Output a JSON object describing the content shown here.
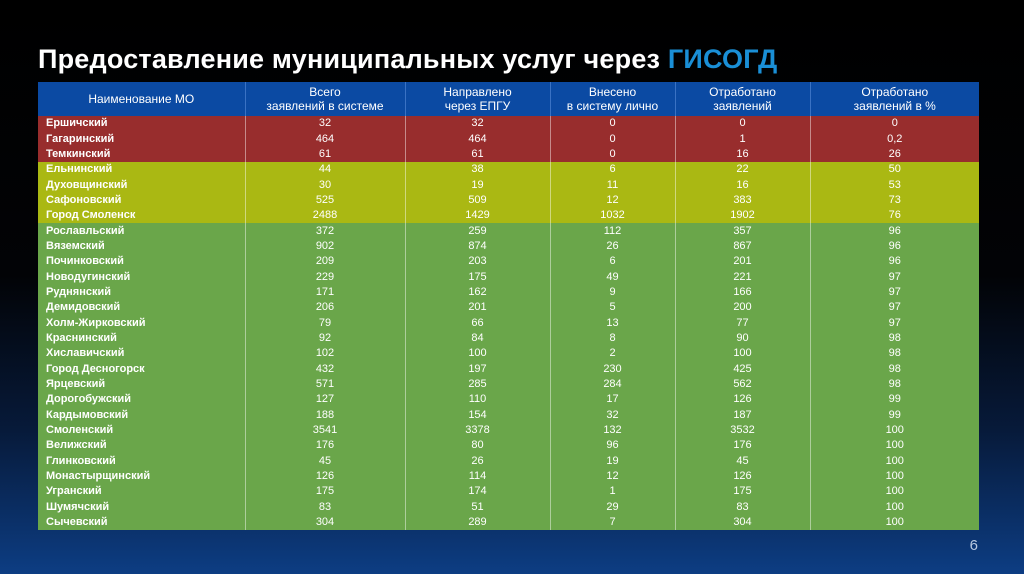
{
  "title": {
    "prefix": "Предоставление муниципальных услуг через",
    "highlight": "ГИСОГД"
  },
  "page_number": "6",
  "colors": {
    "header": "#0b4aa3",
    "red": "#982d2d",
    "yellow": "#aab813",
    "green": "#6aa64a",
    "title_highlight": "#1a8fd6"
  },
  "table": {
    "headers": [
      [
        "Наименование МО"
      ],
      [
        "Всего",
        "заявлений в системе"
      ],
      [
        "Направлено",
        "через ЕПГУ"
      ],
      [
        "Внесено",
        "в систему лично"
      ],
      [
        "Отработано",
        "заявлений"
      ],
      [
        "Отработано",
        "заявлений в %"
      ]
    ],
    "rows": [
      {
        "status": "red",
        "cells": [
          "Ершичский",
          "32",
          "32",
          "0",
          "0",
          "0"
        ]
      },
      {
        "status": "red",
        "cells": [
          "Гагаринский",
          "464",
          "464",
          "0",
          "1",
          "0,2"
        ]
      },
      {
        "status": "red",
        "cells": [
          "Темкинский",
          "61",
          "61",
          "0",
          "16",
          "26"
        ]
      },
      {
        "status": "yellow",
        "cells": [
          "Ельнинский",
          "44",
          "38",
          "6",
          "22",
          "50"
        ]
      },
      {
        "status": "yellow",
        "cells": [
          "Духовщинский",
          "30",
          "19",
          "11",
          "16",
          "53"
        ]
      },
      {
        "status": "yellow",
        "cells": [
          "Сафоновский",
          "525",
          "509",
          "12",
          "383",
          "73"
        ]
      },
      {
        "status": "yellow",
        "cells": [
          "Город Смоленск",
          "2488",
          "1429",
          "1032",
          "1902",
          "76"
        ]
      },
      {
        "status": "green",
        "cells": [
          "Рославльский",
          "372",
          "259",
          "112",
          "357",
          "96"
        ]
      },
      {
        "status": "green",
        "cells": [
          "Вяземский",
          "902",
          "874",
          "26",
          "867",
          "96"
        ]
      },
      {
        "status": "green",
        "cells": [
          "Починковский",
          "209",
          "203",
          "6",
          "201",
          "96"
        ]
      },
      {
        "status": "green",
        "cells": [
          "Новодугинский",
          "229",
          "175",
          "49",
          "221",
          "97"
        ]
      },
      {
        "status": "green",
        "cells": [
          "Руднянский",
          "171",
          "162",
          "9",
          "166",
          "97"
        ]
      },
      {
        "status": "green",
        "cells": [
          "Демидовский",
          "206",
          "201",
          "5",
          "200",
          "97"
        ]
      },
      {
        "status": "green",
        "cells": [
          "Холм-Жирковский",
          "79",
          "66",
          "13",
          "77",
          "97"
        ]
      },
      {
        "status": "green",
        "cells": [
          "Краснинский",
          "92",
          "84",
          "8",
          "90",
          "98"
        ]
      },
      {
        "status": "green",
        "cells": [
          "Хиславичский",
          "102",
          "100",
          "2",
          "100",
          "98"
        ]
      },
      {
        "status": "green",
        "cells": [
          "Город Десногорск",
          "432",
          "197",
          "230",
          "425",
          "98"
        ]
      },
      {
        "status": "green",
        "cells": [
          "Ярцевский",
          "571",
          "285",
          "284",
          "562",
          "98"
        ]
      },
      {
        "status": "green",
        "cells": [
          "Дорогобужский",
          "127",
          "110",
          "17",
          "126",
          "99"
        ]
      },
      {
        "status": "green",
        "cells": [
          "Кардымовский",
          "188",
          "154",
          "32",
          "187",
          "99"
        ]
      },
      {
        "status": "green",
        "cells": [
          "Смоленский",
          "3541",
          "3378",
          "132",
          "3532",
          "100"
        ]
      },
      {
        "status": "green",
        "cells": [
          "Велижский",
          "176",
          "80",
          "96",
          "176",
          "100"
        ]
      },
      {
        "status": "green",
        "cells": [
          "Глинковский",
          "45",
          "26",
          "19",
          "45",
          "100"
        ]
      },
      {
        "status": "green",
        "cells": [
          "Монастырщинский",
          "126",
          "114",
          "12",
          "126",
          "100"
        ]
      },
      {
        "status": "green",
        "cells": [
          "Угранский",
          "175",
          "174",
          "1",
          "175",
          "100"
        ]
      },
      {
        "status": "green",
        "cells": [
          "Шумячский",
          "83",
          "51",
          "29",
          "83",
          "100"
        ]
      },
      {
        "status": "green",
        "cells": [
          "Сычевский",
          "304",
          "289",
          "7",
          "304",
          "100"
        ]
      }
    ]
  }
}
